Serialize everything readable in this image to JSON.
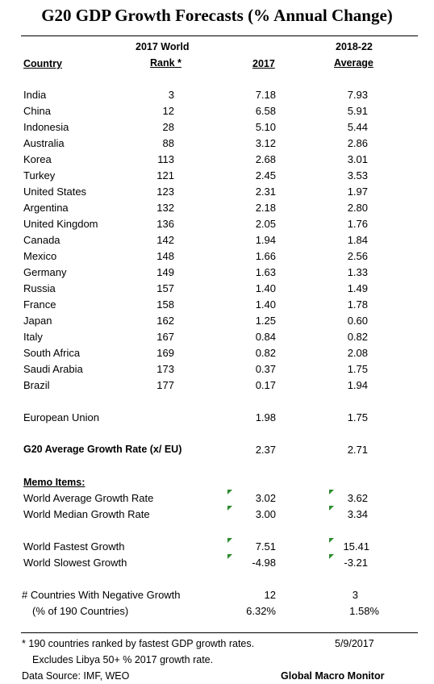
{
  "title": "G20 GDP Growth Forecasts  (% Annual Change)",
  "headers": {
    "country": "Country",
    "rank_line1": "2017 World",
    "rank_line2": "Rank *",
    "y2017": "2017",
    "avg_line1": "2018-22",
    "avg_line2": "Average"
  },
  "countries": [
    {
      "name": "India",
      "rank": "3",
      "y2017": "7.18",
      "avg": "7.93"
    },
    {
      "name": "China",
      "rank": "12",
      "y2017": "6.58",
      "avg": "5.91"
    },
    {
      "name": "Indonesia",
      "rank": "28",
      "y2017": "5.10",
      "avg": "5.44"
    },
    {
      "name": "Australia",
      "rank": "88",
      "y2017": "3.12",
      "avg": "2.86"
    },
    {
      "name": "Korea",
      "rank": "113",
      "y2017": "2.68",
      "avg": "3.01"
    },
    {
      "name": "Turkey",
      "rank": "121",
      "y2017": "2.45",
      "avg": "3.53"
    },
    {
      "name": "United States",
      "rank": "123",
      "y2017": "2.31",
      "avg": "1.97"
    },
    {
      "name": "Argentina",
      "rank": "132",
      "y2017": "2.18",
      "avg": "2.80"
    },
    {
      "name": "United Kingdom",
      "rank": "136",
      "y2017": "2.05",
      "avg": "1.76"
    },
    {
      "name": "Canada",
      "rank": "142",
      "y2017": "1.94",
      "avg": "1.84"
    },
    {
      "name": "Mexico",
      "rank": "148",
      "y2017": "1.66",
      "avg": "2.56"
    },
    {
      "name": "Germany",
      "rank": "149",
      "y2017": "1.63",
      "avg": "1.33"
    },
    {
      "name": "Russia",
      "rank": "157",
      "y2017": "1.40",
      "avg": "1.49"
    },
    {
      "name": "France",
      "rank": "158",
      "y2017": "1.40",
      "avg": "1.78"
    },
    {
      "name": "Japan",
      "rank": "162",
      "y2017": "1.25",
      "avg": "0.60"
    },
    {
      "name": "Italy",
      "rank": "167",
      "y2017": "0.84",
      "avg": "0.82"
    },
    {
      "name": "South Africa",
      "rank": "169",
      "y2017": "0.82",
      "avg": "2.08"
    },
    {
      "name": "Saudi Arabia",
      "rank": "173",
      "y2017": "0.37",
      "avg": "1.75"
    },
    {
      "name": "Brazil",
      "rank": "177",
      "y2017": "0.17",
      "avg": "1.94"
    }
  ],
  "eu": {
    "name": "European Union",
    "y2017": "1.98",
    "avg": "1.75"
  },
  "g20": {
    "name": "G20 Average Growth Rate (x/ EU)",
    "y2017": "2.37",
    "avg": "2.71"
  },
  "memo": {
    "heading": "Memo Items:",
    "world_avg": {
      "name": "World Average Growth Rate",
      "y2017": "3.02",
      "avg": "3.62"
    },
    "world_median": {
      "name": "World Median Growth Rate",
      "y2017": "3.00",
      "avg": "3.34"
    },
    "fastest": {
      "name": "World Fastest Growth",
      "y2017": "7.51",
      "avg": "15.41"
    },
    "slowest": {
      "name": "World Slowest Growth",
      "y2017": "-4.98",
      "avg": "-3.21"
    },
    "neg_count": {
      "name": "# Countries With Negative Growth",
      "y2017": "12",
      "avg": "3"
    },
    "neg_pct": {
      "name": "(% of 190 Countries)",
      "y2017": "6.32%",
      "avg": "1.58%"
    }
  },
  "footer": {
    "note1": "* 190 countries ranked by fastest GDP growth rates.",
    "note2": "Excludes Libya 50+ % 2017 growth rate.",
    "date": "5/9/2017",
    "source": "Data Source:  IMF, WEO",
    "brand": "Global Macro Monitor"
  },
  "indicator_color": "#2e8b2e"
}
